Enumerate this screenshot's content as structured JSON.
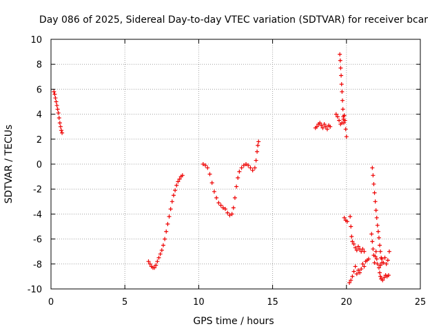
{
  "chart_data": {
    "type": "scatter",
    "title": "Day 086 of 2025, Sidereal Day-to-day VTEC variation (SDTVAR) for receiver bcar",
    "xlabel": "GPS time / hours",
    "ylabel": "SDTVAR / TECUs",
    "xlim": [
      0,
      25
    ],
    "ylim": [
      -10,
      10
    ],
    "xticks": [
      0,
      5,
      10,
      15,
      20,
      25
    ],
    "yticks": [
      -10,
      -8,
      -6,
      -4,
      -2,
      0,
      2,
      4,
      6,
      8,
      10
    ],
    "grid": true,
    "marker": "plus",
    "color": "#ee0000",
    "series": [
      {
        "points": [
          [
            0.2,
            5.8
          ],
          [
            0.25,
            5.6
          ],
          [
            0.3,
            5.3
          ],
          [
            0.35,
            5.0
          ],
          [
            0.4,
            4.7
          ],
          [
            0.45,
            4.4
          ],
          [
            0.5,
            4.1
          ],
          [
            0.55,
            3.7
          ],
          [
            0.6,
            3.3
          ],
          [
            0.65,
            3.0
          ],
          [
            0.7,
            2.7
          ],
          [
            0.75,
            2.5
          ]
        ]
      },
      {
        "points": [
          [
            6.6,
            -7.8
          ],
          [
            6.7,
            -8.0
          ],
          [
            6.8,
            -8.2
          ],
          [
            6.9,
            -8.3
          ],
          [
            7.0,
            -8.3
          ],
          [
            7.1,
            -8.1
          ],
          [
            7.2,
            -7.8
          ],
          [
            7.3,
            -7.5
          ],
          [
            7.4,
            -7.2
          ],
          [
            7.5,
            -6.9
          ],
          [
            7.6,
            -6.5
          ],
          [
            7.7,
            -6.0
          ],
          [
            7.8,
            -5.4
          ],
          [
            7.9,
            -4.8
          ],
          [
            8.0,
            -4.2
          ],
          [
            8.1,
            -3.6
          ],
          [
            8.2,
            -3.0
          ],
          [
            8.3,
            -2.5
          ],
          [
            8.4,
            -2.1
          ],
          [
            8.5,
            -1.7
          ],
          [
            8.6,
            -1.4
          ],
          [
            8.7,
            -1.2
          ],
          [
            8.8,
            -1.0
          ],
          [
            8.9,
            -0.9
          ]
        ]
      },
      {
        "points": [
          [
            10.3,
            0.0
          ],
          [
            10.45,
            -0.1
          ],
          [
            10.6,
            -0.3
          ],
          [
            10.75,
            -0.8
          ],
          [
            10.9,
            -1.5
          ],
          [
            11.05,
            -2.2
          ],
          [
            11.2,
            -2.7
          ],
          [
            11.35,
            -3.1
          ],
          [
            11.5,
            -3.3
          ],
          [
            11.65,
            -3.5
          ],
          [
            11.8,
            -3.6
          ],
          [
            11.95,
            -3.9
          ],
          [
            12.1,
            -4.1
          ],
          [
            12.25,
            -4.0
          ],
          [
            12.35,
            -3.5
          ],
          [
            12.45,
            -2.7
          ],
          [
            12.55,
            -1.8
          ],
          [
            12.65,
            -1.1
          ],
          [
            12.75,
            -0.6
          ],
          [
            12.9,
            -0.3
          ],
          [
            13.05,
            -0.1
          ],
          [
            13.2,
            0.0
          ],
          [
            13.35,
            -0.1
          ],
          [
            13.5,
            -0.3
          ],
          [
            13.65,
            -0.5
          ],
          [
            13.8,
            -0.3
          ],
          [
            13.88,
            0.3
          ],
          [
            13.95,
            1.0
          ],
          [
            14.0,
            1.5
          ],
          [
            14.05,
            1.8
          ]
        ]
      },
      {
        "points": [
          [
            17.9,
            2.9
          ],
          [
            18.0,
            3.0
          ],
          [
            18.1,
            3.2
          ],
          [
            18.2,
            3.3
          ],
          [
            18.3,
            3.1
          ],
          [
            18.4,
            2.9
          ],
          [
            18.5,
            3.2
          ],
          [
            18.6,
            3.0
          ],
          [
            18.7,
            2.8
          ],
          [
            18.8,
            3.1
          ],
          [
            18.9,
            3.0
          ]
        ]
      },
      {
        "points": [
          [
            19.3,
            4.0
          ],
          [
            19.4,
            3.8
          ],
          [
            19.5,
            3.5
          ],
          [
            19.6,
            3.2
          ],
          [
            19.7,
            3.3
          ],
          [
            19.8,
            3.6
          ],
          [
            19.85,
            3.9
          ],
          [
            19.9,
            3.5
          ],
          [
            19.95,
            2.8
          ],
          [
            20.0,
            2.2
          ]
        ]
      },
      {
        "points": [
          [
            19.55,
            8.8
          ],
          [
            19.58,
            8.3
          ],
          [
            19.61,
            7.7
          ],
          [
            19.64,
            7.1
          ],
          [
            19.67,
            6.4
          ],
          [
            19.7,
            5.8
          ],
          [
            19.73,
            5.1
          ],
          [
            19.76,
            4.4
          ],
          [
            19.79,
            3.8
          ],
          [
            19.82,
            3.3
          ]
        ]
      },
      {
        "points": [
          [
            19.85,
            -4.3
          ],
          [
            19.95,
            -4.5
          ],
          [
            20.05,
            -4.6
          ]
        ]
      },
      {
        "points": [
          [
            20.25,
            -4.2
          ],
          [
            20.3,
            -5.0
          ],
          [
            20.35,
            -5.8
          ],
          [
            20.4,
            -6.2
          ],
          [
            20.5,
            -6.4
          ],
          [
            20.6,
            -6.7
          ],
          [
            20.7,
            -6.9
          ],
          [
            20.8,
            -6.6
          ],
          [
            20.9,
            -6.8
          ],
          [
            21.0,
            -7.0
          ],
          [
            21.1,
            -6.8
          ],
          [
            21.2,
            -7.0
          ]
        ]
      },
      {
        "points": [
          [
            20.2,
            -9.5
          ],
          [
            20.3,
            -9.3
          ],
          [
            20.4,
            -9.0
          ],
          [
            20.5,
            -8.6
          ],
          [
            20.6,
            -8.2
          ],
          [
            20.7,
            -8.8
          ],
          [
            20.8,
            -8.5
          ],
          [
            20.9,
            -8.7
          ],
          [
            21.0,
            -8.4
          ],
          [
            21.1,
            -8.0
          ],
          [
            21.2,
            -8.2
          ],
          [
            21.3,
            -7.8
          ],
          [
            21.4,
            -7.7
          ],
          [
            21.5,
            -7.6
          ]
        ]
      },
      {
        "points": [
          [
            21.7,
            -5.6
          ],
          [
            21.75,
            -6.2
          ],
          [
            21.8,
            -6.8
          ],
          [
            21.85,
            -7.3
          ],
          [
            21.9,
            -7.9
          ],
          [
            21.95,
            -7.4
          ],
          [
            22.0,
            -7.0
          ],
          [
            22.05,
            -7.6
          ],
          [
            22.1,
            -8.0
          ]
        ]
      },
      {
        "points": [
          [
            21.75,
            -0.3
          ],
          [
            21.8,
            -0.9
          ],
          [
            21.85,
            -1.6
          ],
          [
            21.9,
            -2.3
          ],
          [
            21.95,
            -3.0
          ],
          [
            22.0,
            -3.7
          ],
          [
            22.05,
            -4.3
          ],
          [
            22.1,
            -4.9
          ],
          [
            22.15,
            -5.4
          ],
          [
            22.2,
            -5.9
          ],
          [
            22.25,
            -6.5
          ],
          [
            22.3,
            -7.0
          ],
          [
            22.35,
            -7.5
          ],
          [
            22.4,
            -7.9
          ]
        ]
      },
      {
        "points": [
          [
            22.2,
            -8.3
          ],
          [
            22.25,
            -8.7
          ],
          [
            22.3,
            -9.0
          ],
          [
            22.35,
            -9.2
          ],
          [
            22.45,
            -9.3
          ],
          [
            22.55,
            -9.1
          ],
          [
            22.65,
            -8.9
          ],
          [
            22.75,
            -9.0
          ],
          [
            22.85,
            -8.9
          ]
        ]
      },
      {
        "points": [
          [
            22.3,
            -8.1
          ],
          [
            22.4,
            -7.6
          ],
          [
            22.5,
            -7.9
          ],
          [
            22.6,
            -7.5
          ],
          [
            22.7,
            -8.0
          ],
          [
            22.8,
            -7.7
          ],
          [
            22.9,
            -7.0
          ]
        ]
      }
    ]
  }
}
